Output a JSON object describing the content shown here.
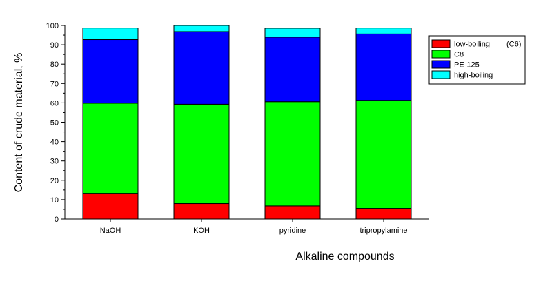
{
  "chart_data": {
    "type": "bar",
    "stacked": true,
    "categories": [
      "NaOH",
      "KOH",
      "pyridine",
      "tripropylamine"
    ],
    "series": [
      {
        "name": "low-boiling",
        "color": "#ff0000",
        "values": [
          13.3,
          8.0,
          6.8,
          5.5
        ]
      },
      {
        "name": "C8",
        "color": "#00ff00",
        "values": [
          46.5,
          51.3,
          53.8,
          55.8
        ]
      },
      {
        "name": "PE-125",
        "color": "#0000ff",
        "values": [
          32.9,
          37.5,
          33.4,
          34.3
        ]
      },
      {
        "name": "high-boiling",
        "color": "#00ffff",
        "values": [
          6.0,
          3.2,
          4.6,
          3.1
        ]
      }
    ],
    "legend_note": "(C6)",
    "xlabel": "Alkaline compounds",
    "ylabel": "Content of crude material, %",
    "ylim": [
      0,
      100
    ],
    "yticks": [
      0,
      10,
      20,
      30,
      40,
      50,
      60,
      70,
      80,
      90,
      100
    ],
    "grid": false,
    "legend_position": "top-right"
  }
}
